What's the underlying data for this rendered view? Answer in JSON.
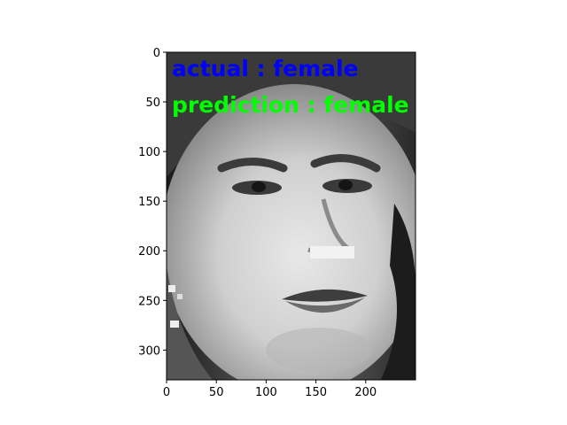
{
  "image": {
    "subject": "grayscale-face-photo",
    "overlay": {
      "actual_text": "actual : female",
      "prediction_text": "prediction : female",
      "actual_color": "#0000ff",
      "prediction_color": "#00ff00"
    }
  },
  "axes": {
    "x_ticks": [
      0,
      50,
      100,
      150,
      200
    ],
    "y_ticks": [
      0,
      50,
      100,
      150,
      200,
      250,
      300
    ],
    "xlim": [
      0,
      250
    ],
    "ylim": [
      330,
      0
    ]
  }
}
